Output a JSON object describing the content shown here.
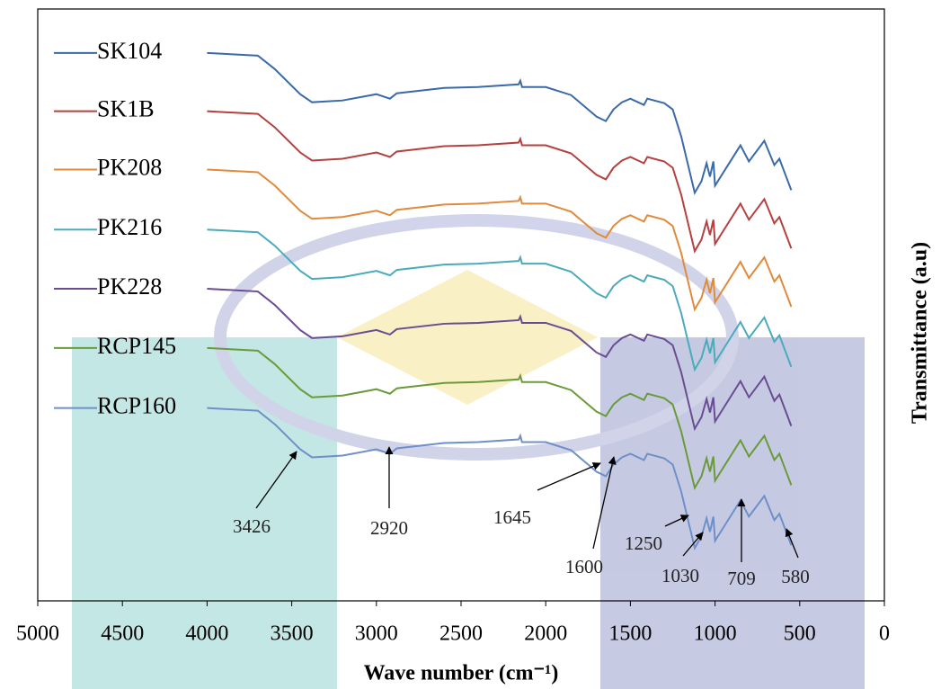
{
  "chart_data": {
    "type": "line",
    "x_label": "Wave number (cm⁻¹)",
    "y_label": "Transmittance (a.u)",
    "xlim": [
      5000,
      0
    ],
    "xticks": [
      5000,
      4500,
      4000,
      3500,
      3000,
      2500,
      2000,
      1500,
      1000,
      500,
      0
    ],
    "ylim": [
      0,
      660
    ],
    "x": [
      4000,
      3700,
      3600,
      3450,
      3380,
      3200,
      3000,
      2920,
      2880,
      2600,
      2400,
      2160,
      2150,
      2140,
      2000,
      1850,
      1700,
      1645,
      1600,
      1550,
      1500,
      1420,
      1400,
      1300,
      1250,
      1200,
      1120,
      1080,
      1050,
      1030,
      1010,
      1000,
      950,
      850,
      800,
      709,
      650,
      620,
      580,
      550
    ],
    "series": [
      {
        "name": "SK104",
        "color": "#3b6aa8",
        "values": [
          611,
          608,
          593,
          565,
          556,
          558,
          565,
          560,
          566,
          572,
          573,
          576,
          580,
          573,
          573,
          564,
          540,
          535,
          548,
          556,
          560,
          553,
          560,
          555,
          548,
          518,
          455,
          468,
          488,
          473,
          490,
          463,
          478,
          508,
          490,
          513,
          486,
          493,
          473,
          458
        ]
      },
      {
        "name": "SK1B",
        "color": "#b5403f",
        "values": [
          546,
          543,
          528,
          500,
          491,
          493,
          500,
          495,
          501,
          507,
          508,
          511,
          515,
          508,
          508,
          499,
          475,
          470,
          483,
          491,
          495,
          488,
          495,
          490,
          483,
          453,
          390,
          403,
          423,
          408,
          425,
          398,
          413,
          443,
          425,
          448,
          421,
          428,
          408,
          393
        ]
      },
      {
        "name": "PK208",
        "color": "#e08a3c",
        "values": [
          481,
          478,
          463,
          435,
          426,
          428,
          435,
          430,
          436,
          442,
          443,
          446,
          450,
          443,
          443,
          434,
          410,
          405,
          418,
          426,
          430,
          423,
          430,
          425,
          418,
          388,
          325,
          338,
          358,
          343,
          360,
          333,
          348,
          378,
          360,
          383,
          356,
          363,
          343,
          328
        ]
      },
      {
        "name": "PK216",
        "color": "#4aabbb",
        "values": [
          414,
          411,
          396,
          368,
          359,
          361,
          368,
          363,
          369,
          375,
          376,
          379,
          383,
          376,
          376,
          367,
          343,
          338,
          351,
          359,
          363,
          356,
          363,
          358,
          351,
          321,
          258,
          271,
          291,
          276,
          293,
          266,
          281,
          311,
          293,
          316,
          289,
          296,
          276,
          261
        ]
      },
      {
        "name": "PK228",
        "color": "#6a4c93",
        "values": [
          348,
          345,
          330,
          302,
          293,
          295,
          302,
          297,
          303,
          309,
          310,
          313,
          317,
          310,
          310,
          301,
          277,
          272,
          285,
          293,
          297,
          290,
          297,
          292,
          285,
          255,
          192,
          205,
          225,
          210,
          227,
          200,
          215,
          245,
          227,
          250,
          223,
          230,
          210,
          195
        ]
      },
      {
        "name": "RCP145",
        "color": "#6a9a3a",
        "values": [
          282,
          279,
          264,
          236,
          227,
          229,
          236,
          231,
          237,
          243,
          244,
          247,
          251,
          244,
          244,
          235,
          211,
          206,
          219,
          227,
          231,
          224,
          231,
          226,
          219,
          189,
          126,
          139,
          159,
          144,
          161,
          134,
          149,
          179,
          161,
          184,
          157,
          164,
          144,
          129
        ]
      },
      {
        "name": "RCP160",
        "color": "#6f8fc9",
        "values": [
          215,
          212,
          197,
          169,
          160,
          162,
          169,
          164,
          170,
          176,
          177,
          180,
          184,
          177,
          177,
          168,
          144,
          139,
          152,
          160,
          164,
          157,
          164,
          159,
          152,
          122,
          59,
          72,
          92,
          77,
          94,
          67,
          82,
          112,
          94,
          117,
          90,
          97,
          77,
          62
        ]
      }
    ],
    "annotations": [
      "3426",
      "2920",
      "1645",
      "1600",
      "1250",
      "1030",
      "709",
      "580"
    ]
  }
}
